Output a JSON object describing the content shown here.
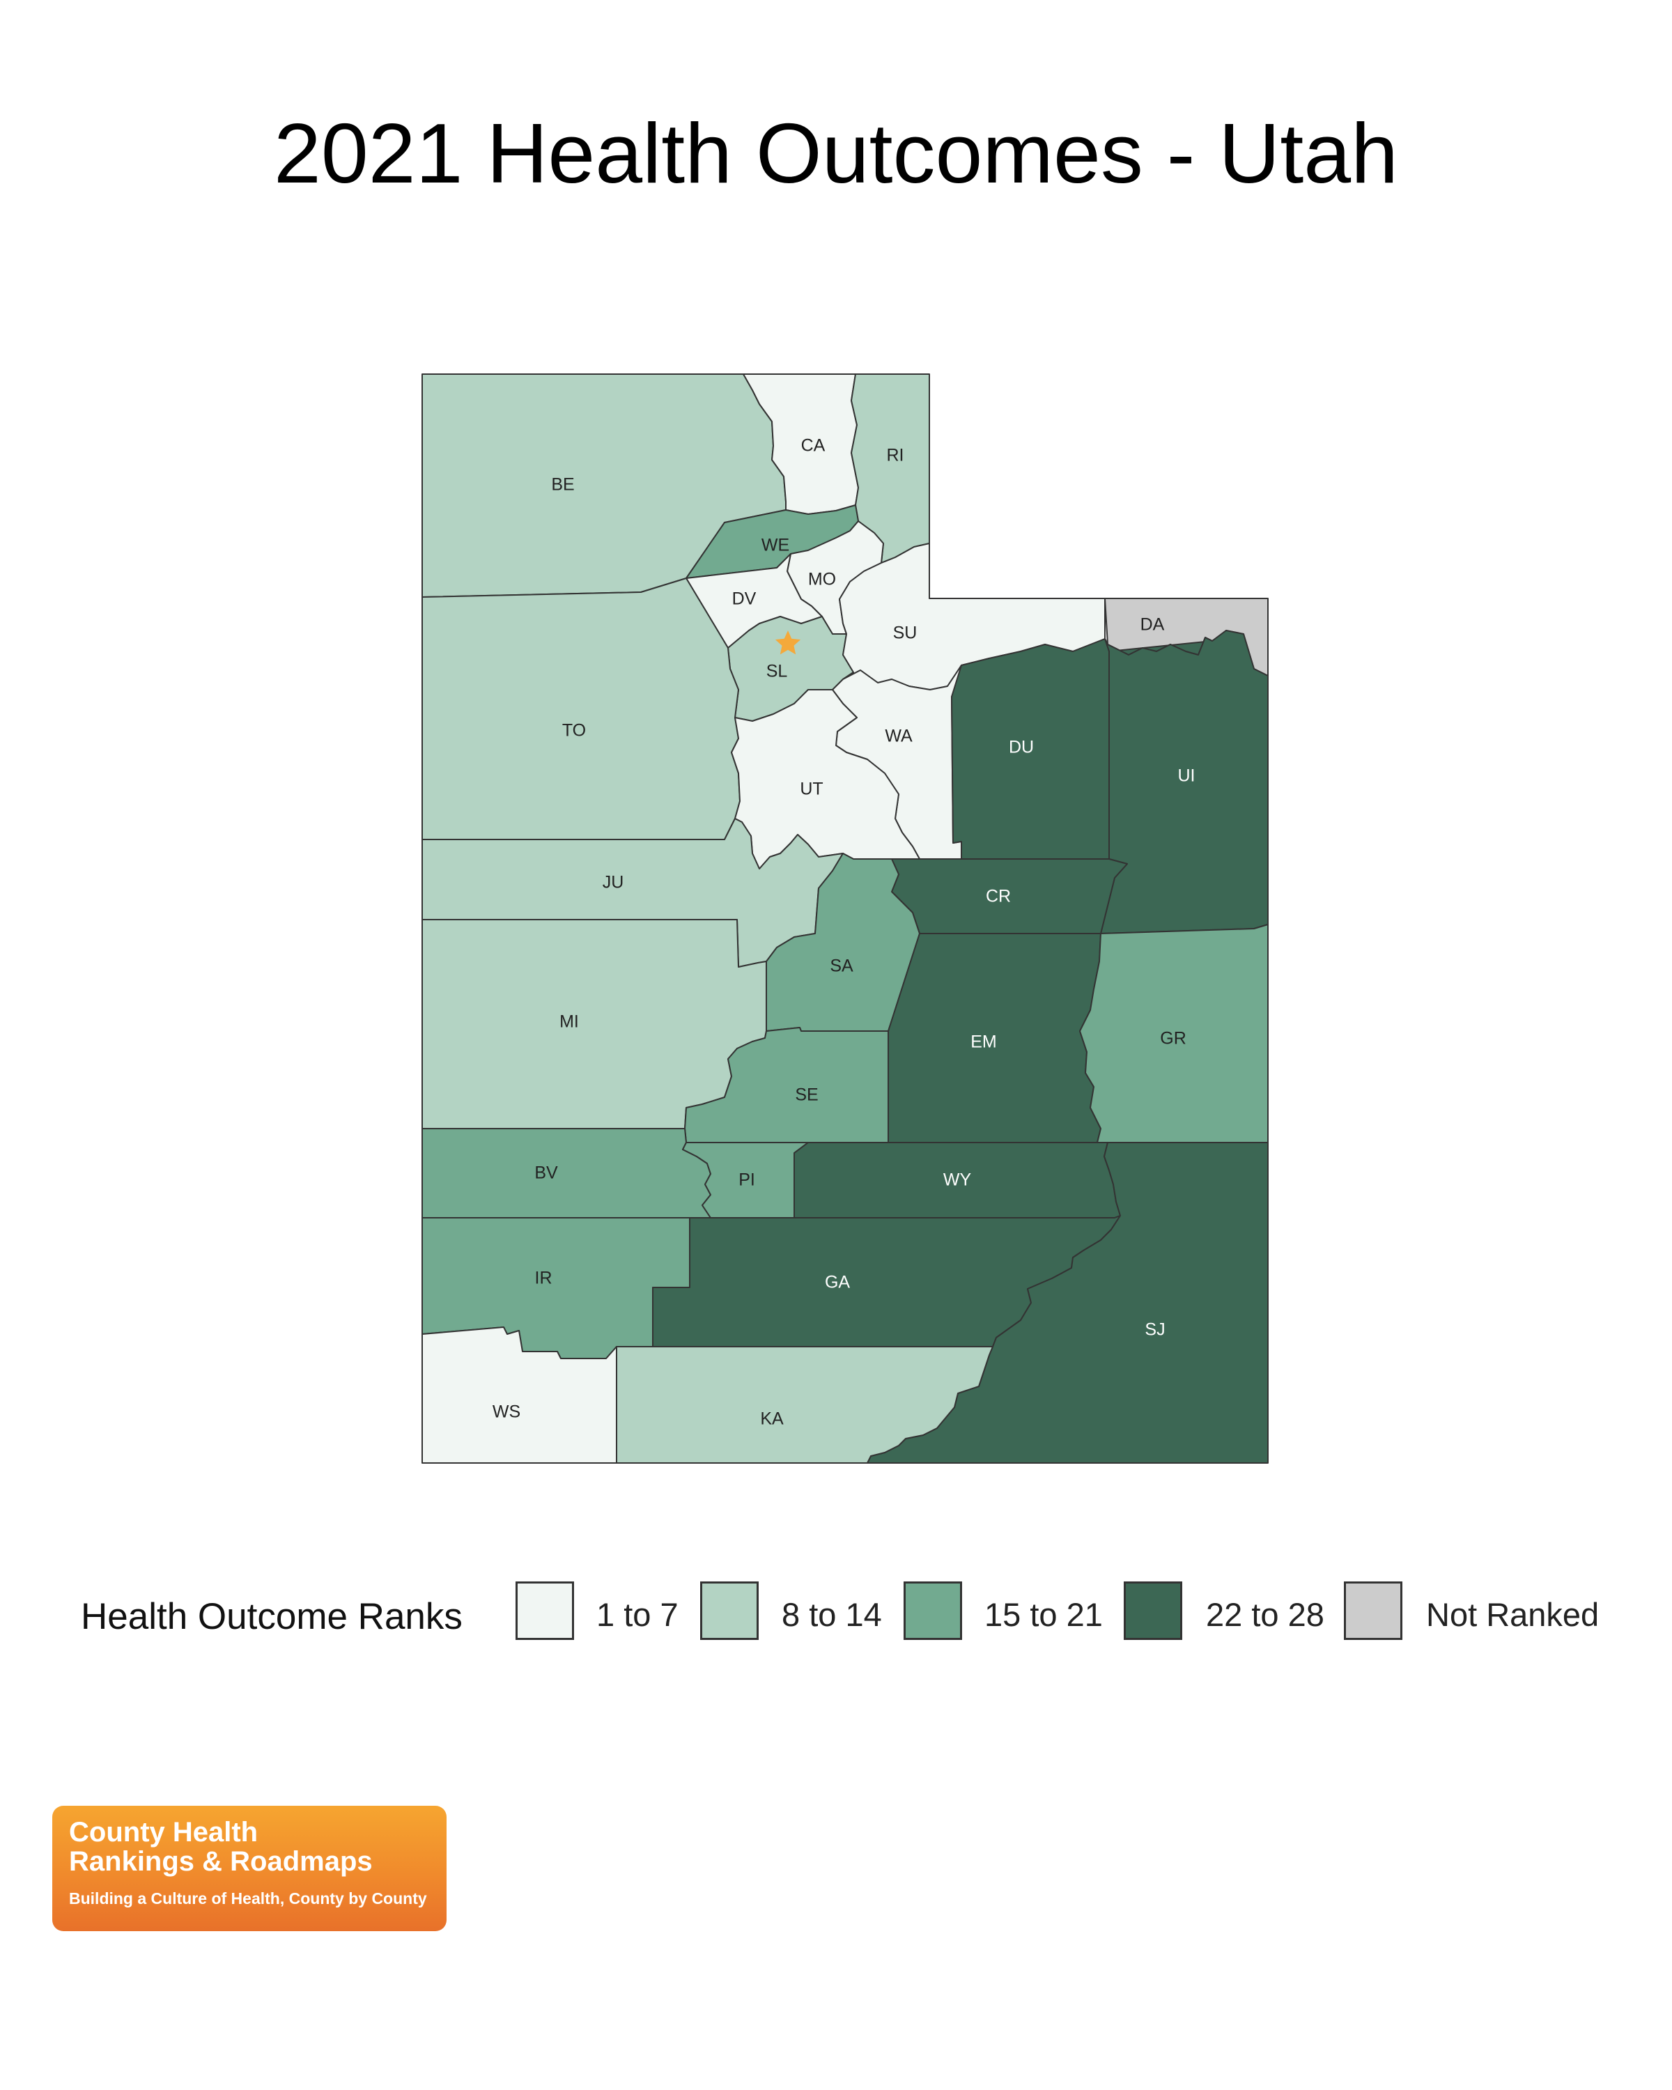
{
  "title": "2021 Health Outcomes - Utah",
  "colors": {
    "rank_1_7": "#f1f6f3",
    "rank_8_14": "#b3d3c3",
    "rank_15_21": "#72aa90",
    "rank_22_28": "#3c6754",
    "not_ranked": "#cccccc",
    "capital_star": "#f4a93b",
    "border": "#333333"
  },
  "legend": {
    "title": "Health Outcome Ranks",
    "items": [
      {
        "label": "1 to 7",
        "color": "#f1f6f3"
      },
      {
        "label": "8 to 14",
        "color": "#b3d3c3"
      },
      {
        "label": "15 to 21",
        "color": "#72aa90"
      },
      {
        "label": "22 to 28",
        "color": "#3c6754"
      },
      {
        "label": "Not Ranked",
        "color": "#cccccc"
      }
    ]
  },
  "counties": [
    {
      "abbr": "BE",
      "rank_group": "8 to 14"
    },
    {
      "abbr": "CA",
      "rank_group": "1 to 7"
    },
    {
      "abbr": "RI",
      "rank_group": "8 to 14"
    },
    {
      "abbr": "WE",
      "rank_group": "15 to 21"
    },
    {
      "abbr": "MO",
      "rank_group": "1 to 7"
    },
    {
      "abbr": "DV",
      "rank_group": "1 to 7"
    },
    {
      "abbr": "SL",
      "rank_group": "8 to 14"
    },
    {
      "abbr": "SU",
      "rank_group": "1 to 7"
    },
    {
      "abbr": "DA",
      "rank_group": "Not Ranked"
    },
    {
      "abbr": "TO",
      "rank_group": "8 to 14"
    },
    {
      "abbr": "WA",
      "rank_group": "1 to 7"
    },
    {
      "abbr": "UT",
      "rank_group": "1 to 7"
    },
    {
      "abbr": "DU",
      "rank_group": "22 to 28"
    },
    {
      "abbr": "UI",
      "rank_group": "22 to 28"
    },
    {
      "abbr": "JU",
      "rank_group": "8 to 14"
    },
    {
      "abbr": "CR",
      "rank_group": "22 to 28"
    },
    {
      "abbr": "SA",
      "rank_group": "15 to 21"
    },
    {
      "abbr": "MI",
      "rank_group": "8 to 14"
    },
    {
      "abbr": "EM",
      "rank_group": "22 to 28"
    },
    {
      "abbr": "GR",
      "rank_group": "15 to 21"
    },
    {
      "abbr": "SE",
      "rank_group": "15 to 21"
    },
    {
      "abbr": "BV",
      "rank_group": "15 to 21"
    },
    {
      "abbr": "PI",
      "rank_group": "15 to 21"
    },
    {
      "abbr": "WY",
      "rank_group": "22 to 28"
    },
    {
      "abbr": "IR",
      "rank_group": "15 to 21"
    },
    {
      "abbr": "GA",
      "rank_group": "22 to 28"
    },
    {
      "abbr": "SJ",
      "rank_group": "22 to 28"
    },
    {
      "abbr": "WS",
      "rank_group": "1 to 7"
    },
    {
      "abbr": "KA",
      "rank_group": "8 to 14"
    }
  ],
  "logo": {
    "line1": "County Health",
    "line2": "Rankings & Roadmaps",
    "tagline": "Building a Culture of Health, County by County"
  }
}
